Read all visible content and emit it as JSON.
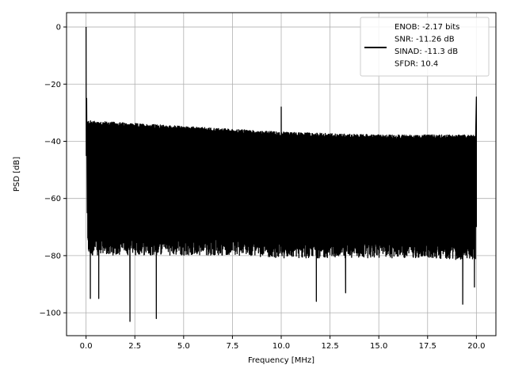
{
  "chart_data": {
    "type": "line",
    "title": "",
    "xlabel": "Frequency [MHz]",
    "ylabel": "PSD [dB]",
    "xlim": [
      -1,
      21
    ],
    "ylim": [
      -108,
      5
    ],
    "xticks": [
      0.0,
      2.5,
      5.0,
      7.5,
      10.0,
      12.5,
      15.0,
      17.5,
      20.0
    ],
    "xtick_labels": [
      "0.0",
      "2.5",
      "5.0",
      "7.5",
      "10.0",
      "12.5",
      "15.0",
      "17.5",
      "20.0"
    ],
    "yticks": [
      0,
      -20,
      -40,
      -60,
      -80,
      -100
    ],
    "ytick_labels": [
      "0",
      "−20",
      "−40",
      "−60",
      "−80",
      "−100"
    ],
    "grid": true,
    "legend_position": "upper right",
    "legend_entries": [
      "ENOB: -2.17 bits",
      "SNR: -11.26 dB",
      "SINAD: -11.3 dB",
      "SFDR: 10.4"
    ],
    "series": [
      {
        "color": "#000000",
        "noise_band_envelope": {
          "x": [
            0.1,
            2.5,
            5.0,
            7.5,
            10.0,
            12.5,
            15.0,
            17.5,
            20.0
          ],
          "upper_db": [
            -33.5,
            -34.5,
            -35.5,
            -36.5,
            -37.5,
            -38.0,
            -38.5,
            -38.5,
            -38.5
          ],
          "lower_db": [
            -78,
            -78,
            -78,
            -78,
            -79,
            -79,
            -79,
            -79,
            -80
          ]
        },
        "peaks": [
          {
            "x": 0.0,
            "y": 0
          },
          {
            "x": 0.05,
            "y": -25
          },
          {
            "x": 10.0,
            "y": -28
          },
          {
            "x": 20.0,
            "y": -24.5
          }
        ],
        "deep_dips": [
          {
            "x": 0.22,
            "y": -95
          },
          {
            "x": 0.65,
            "y": -95
          },
          {
            "x": 2.25,
            "y": -103
          },
          {
            "x": 3.6,
            "y": -102
          },
          {
            "x": 11.8,
            "y": -96
          },
          {
            "x": 13.3,
            "y": -93
          },
          {
            "x": 19.3,
            "y": -97
          },
          {
            "x": 19.9,
            "y": -91
          }
        ]
      }
    ]
  }
}
